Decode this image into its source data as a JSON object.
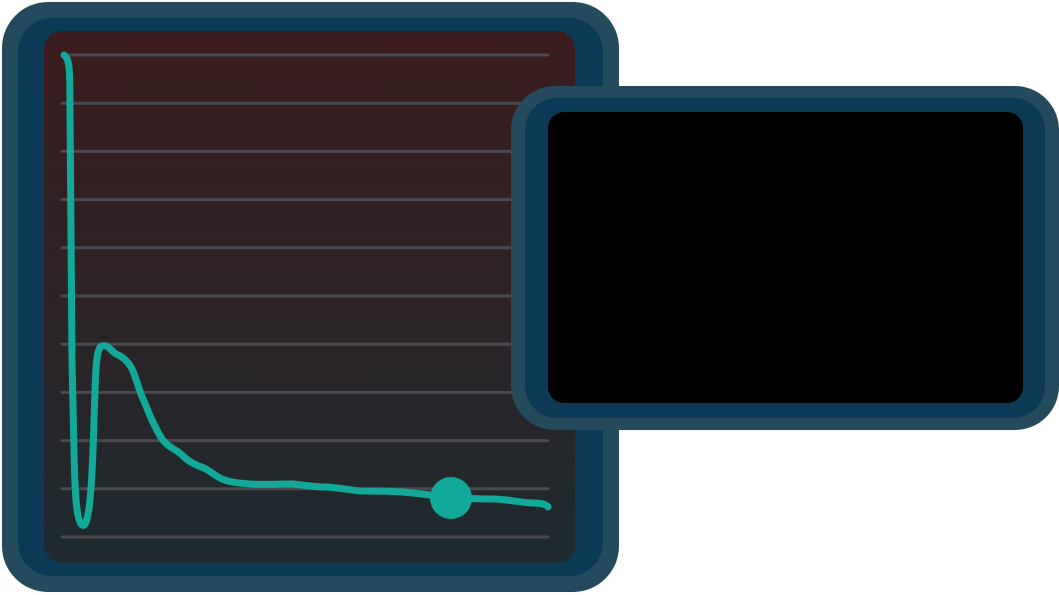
{
  "monitor": {
    "colors": {
      "frame_outer": "#234b5d",
      "frame_inner": "#0b3956",
      "screen_top": "#3b1b1d",
      "screen_bottom": "#1d2a2f",
      "gridline": "#4a4a4e",
      "trace": "#12a99a",
      "marker": "#12a99a"
    },
    "gridline_count": 11,
    "marker_progress": 0.8
  },
  "side_panel": {
    "colors": {
      "frame_outer": "#234b5d",
      "frame_inner": "#0b3956",
      "screen": "#000000"
    }
  }
}
